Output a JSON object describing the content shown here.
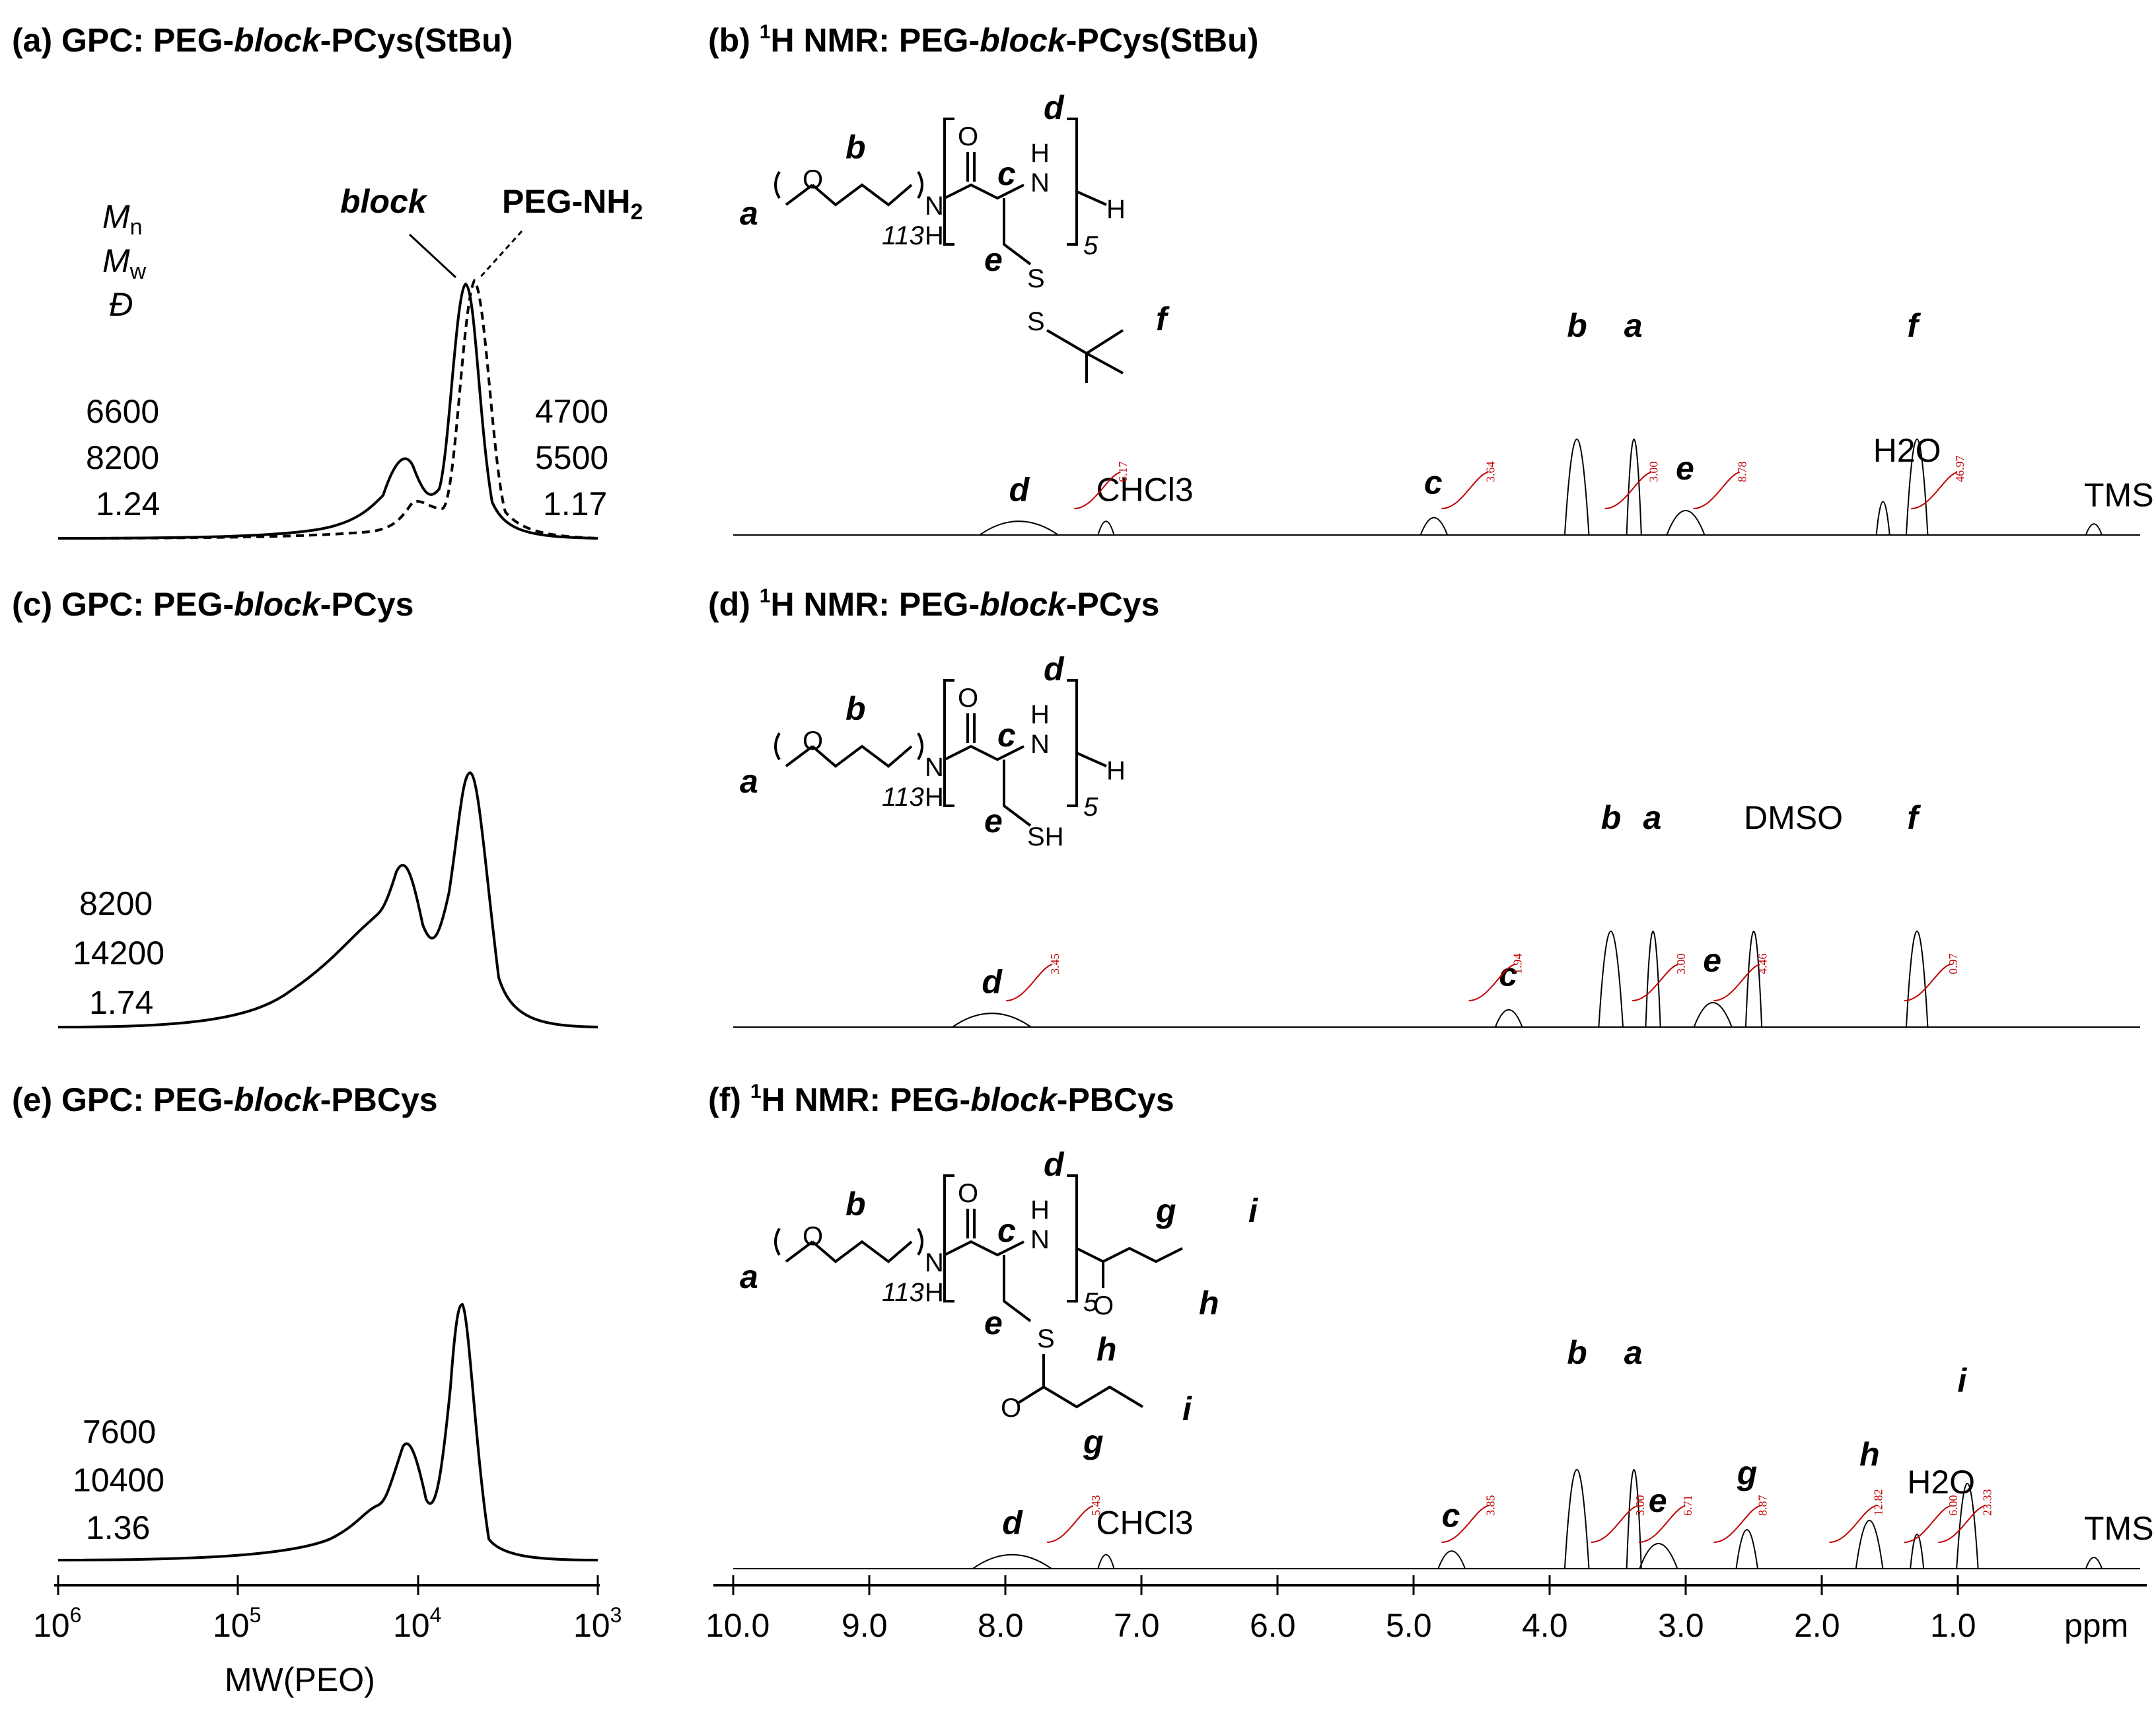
{
  "panels": {
    "a": {
      "tag": "(a)",
      "title": "GPC: PEG-",
      "title_em": "block",
      "title_end": "-PCys(StBu)"
    },
    "b": {
      "tag": "(b)",
      "sup": "1",
      "title": "H NMR: PEG-",
      "title_em": "block",
      "title_end": "-PCys(StBu)"
    },
    "c": {
      "tag": "(c)",
      "title": "GPC: PEG-",
      "title_em": "block",
      "title_end": "-PCys"
    },
    "d": {
      "tag": "(d)",
      "sup": "1",
      "title": "H NMR: PEG-",
      "title_em": "block",
      "title_end": "-PCys"
    },
    "e": {
      "tag": "(e)",
      "title": "GPC: PEG-",
      "title_em": "block",
      "title_end": "-PBCys"
    },
    "f": {
      "tag": "(f)",
      "sup": "1",
      "title": "H NMR: PEG-",
      "title_em": "block",
      "title_end": "-PBCys"
    }
  },
  "gpc_legend": {
    "mn_main": "M",
    "mn_sub": "n",
    "mw_main": "M",
    "mw_sub": "w",
    "d_label": "Đ",
    "block_label": "block",
    "peg_main": "PEG-NH",
    "peg_sub": "2"
  },
  "chemistry": {
    "a": "a",
    "b": "b",
    "c": "c",
    "d": "d",
    "e": "e",
    "f": "f",
    "g": "g",
    "h": "h",
    "i": "i",
    "O": "O",
    "N": "N",
    "H": "H",
    "NH": "N",
    "S": "S",
    "SH": "SH",
    "n113": "113",
    "n5": "5"
  },
  "chart_data": [
    {
      "type": "line",
      "id": "gpc-a",
      "title": "GPC: PEG-block-PCys(StBu)",
      "xlabel": "MW(PEO)",
      "xscale": "log",
      "xlim": [
        1000000,
        1000
      ],
      "series": [
        {
          "name": "block",
          "style": "solid",
          "Mn": "6600",
          "Mw": "8200",
          "D": "1.24"
        },
        {
          "name": "PEG-NH2",
          "style": "dashed",
          "Mn": "4700",
          "Mw": "5500",
          "D": "1.17"
        }
      ]
    },
    {
      "type": "line",
      "id": "gpc-c",
      "title": "GPC: PEG-block-PCys",
      "xlabel": "MW(PEO)",
      "xscale": "log",
      "xlim": [
        1000000,
        1000
      ],
      "series": [
        {
          "name": "block",
          "style": "solid",
          "Mn": "8200",
          "Mw": "14200",
          "D": "1.74"
        }
      ]
    },
    {
      "type": "line",
      "id": "gpc-e",
      "title": "GPC: PEG-block-PBCys",
      "xlabel": "MW(PEO)",
      "xscale": "log",
      "xlim": [
        1000000,
        1000
      ],
      "xticks": [
        {
          "base": "10",
          "exp": "6",
          "value": 1000000
        },
        {
          "base": "10",
          "exp": "5",
          "value": 100000
        },
        {
          "base": "10",
          "exp": "4",
          "value": 10000
        },
        {
          "base": "10",
          "exp": "3",
          "value": 1000
        }
      ],
      "series": [
        {
          "name": "block",
          "style": "solid",
          "Mn": "7600",
          "Mw": "10400",
          "D": "1.36"
        }
      ]
    },
    {
      "type": "line",
      "id": "nmr-b",
      "title": "1H NMR: PEG-block-PCys(StBu)",
      "xlabel": "ppm",
      "xlim": [
        10.0,
        0
      ],
      "peaks": [
        {
          "label": "d",
          "ppm": 7.9
        },
        {
          "label": "CHCl3",
          "ppm": 7.26
        },
        {
          "label": "c",
          "ppm": 4.85
        },
        {
          "label": "b",
          "ppm": 3.8
        },
        {
          "label": "a",
          "ppm": 3.38
        },
        {
          "label": "e",
          "ppm": 3.0
        },
        {
          "label": "H2O",
          "ppm": 1.55
        },
        {
          "label": "f",
          "ppm": 1.3
        },
        {
          "label": "TMS",
          "ppm": 0.0
        }
      ],
      "integrals": [
        {
          "ppm": 7.3,
          "value": "6.17"
        },
        {
          "ppm": 4.6,
          "value": "3.64"
        },
        {
          "ppm": 3.4,
          "value": "3.00"
        },
        {
          "ppm": 2.75,
          "value": "8.78"
        },
        {
          "ppm": 1.15,
          "value": "46.97"
        }
      ]
    },
    {
      "type": "line",
      "id": "nmr-d",
      "title": "1H NMR: PEG-block-PCys",
      "xlabel": "ppm",
      "xlim": [
        10.0,
        0
      ],
      "peaks": [
        {
          "label": "d",
          "ppm": 8.1
        },
        {
          "label": "c",
          "ppm": 4.3
        },
        {
          "label": "b",
          "ppm": 3.55
        },
        {
          "label": "a",
          "ppm": 3.24
        },
        {
          "label": "DMSO",
          "ppm": 2.5
        },
        {
          "label": "e",
          "ppm": 2.8
        },
        {
          "label": "f",
          "ppm": 1.3
        }
      ],
      "integrals": [
        {
          "ppm": 7.8,
          "value": "3.45"
        },
        {
          "ppm": 4.4,
          "value": "1.94"
        },
        {
          "ppm": 3.2,
          "value": "3.00"
        },
        {
          "ppm": 2.6,
          "value": "4.46"
        },
        {
          "ppm": 1.2,
          "value": "0.97"
        }
      ]
    },
    {
      "type": "line",
      "id": "nmr-f",
      "title": "1H NMR: PEG-block-PBCys",
      "xlabel": "ppm",
      "xlim": [
        10.0,
        0
      ],
      "xticks": [
        "10.0",
        "9.0",
        "8.0",
        "7.0",
        "6.0",
        "5.0",
        "4.0",
        "3.0",
        "2.0",
        "1.0"
      ],
      "peaks": [
        {
          "label": "d",
          "ppm": 7.95
        },
        {
          "label": "CHCl3",
          "ppm": 7.26
        },
        {
          "label": "c",
          "ppm": 4.72
        },
        {
          "label": "b",
          "ppm": 3.8
        },
        {
          "label": "a",
          "ppm": 3.38
        },
        {
          "label": "e",
          "ppm": 3.2
        },
        {
          "label": "g",
          "ppm": 2.55
        },
        {
          "label": "h",
          "ppm": 1.65
        },
        {
          "label": "H2O",
          "ppm": 1.3
        },
        {
          "label": "i",
          "ppm": 0.93
        },
        {
          "label": "TMS",
          "ppm": 0.0
        }
      ],
      "integrals": [
        {
          "ppm": 7.5,
          "value": "5.43"
        },
        {
          "ppm": 4.6,
          "value": "3.85"
        },
        {
          "ppm": 3.5,
          "value": "3.00"
        },
        {
          "ppm": 3.15,
          "value": "6.71"
        },
        {
          "ppm": 2.6,
          "value": "8.87"
        },
        {
          "ppm": 1.75,
          "value": "12.82"
        },
        {
          "ppm": 1.2,
          "value": "6.00"
        },
        {
          "ppm": 0.95,
          "value": "23.33"
        }
      ]
    }
  ]
}
